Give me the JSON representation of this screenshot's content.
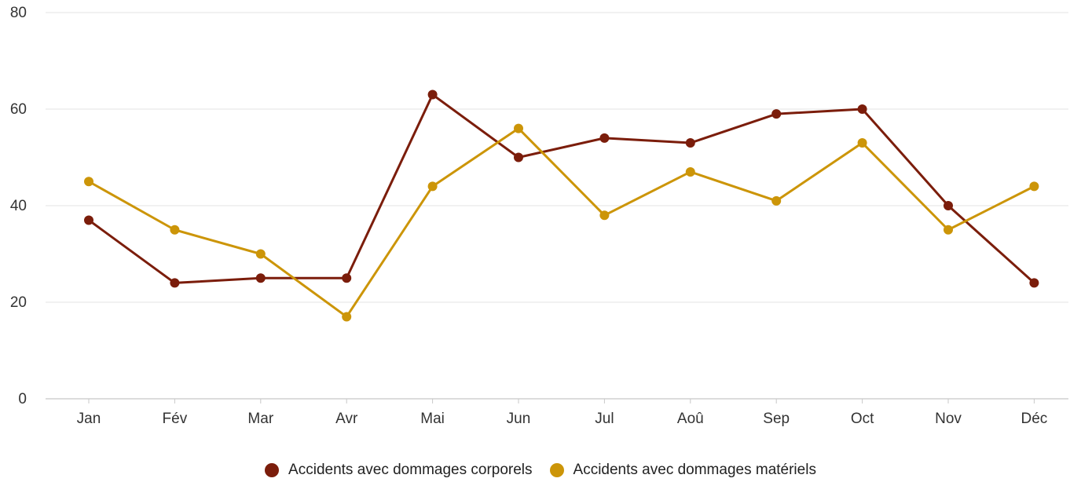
{
  "chart_data": {
    "type": "line",
    "title": "",
    "xlabel": "",
    "ylabel": "",
    "categories": [
      "Jan",
      "Fév",
      "Mar",
      "Avr",
      "Mai",
      "Jun",
      "Jul",
      "Aoû",
      "Sep",
      "Oct",
      "Nov",
      "Déc"
    ],
    "ylim": [
      0,
      80
    ],
    "yticks": [
      0,
      20,
      40,
      60,
      80
    ],
    "grid": true,
    "legend_position": "bottom-center",
    "series": [
      {
        "name": "Accidents avec dommages corporels",
        "color": "#7b1d0b",
        "values": [
          37,
          24,
          25,
          25,
          63,
          50,
          54,
          53,
          59,
          60,
          40,
          24
        ]
      },
      {
        "name": "Accidents avec dommages matériels",
        "color": "#cc9508",
        "values": [
          45,
          35,
          30,
          17,
          44,
          56,
          38,
          47,
          41,
          53,
          35,
          44
        ]
      }
    ]
  },
  "legend": {
    "items": [
      {
        "label": "Accidents avec dommages corporels",
        "color": "#7b1d0b"
      },
      {
        "label": "Accidents avec dommages matériels",
        "color": "#cc9508"
      }
    ]
  }
}
